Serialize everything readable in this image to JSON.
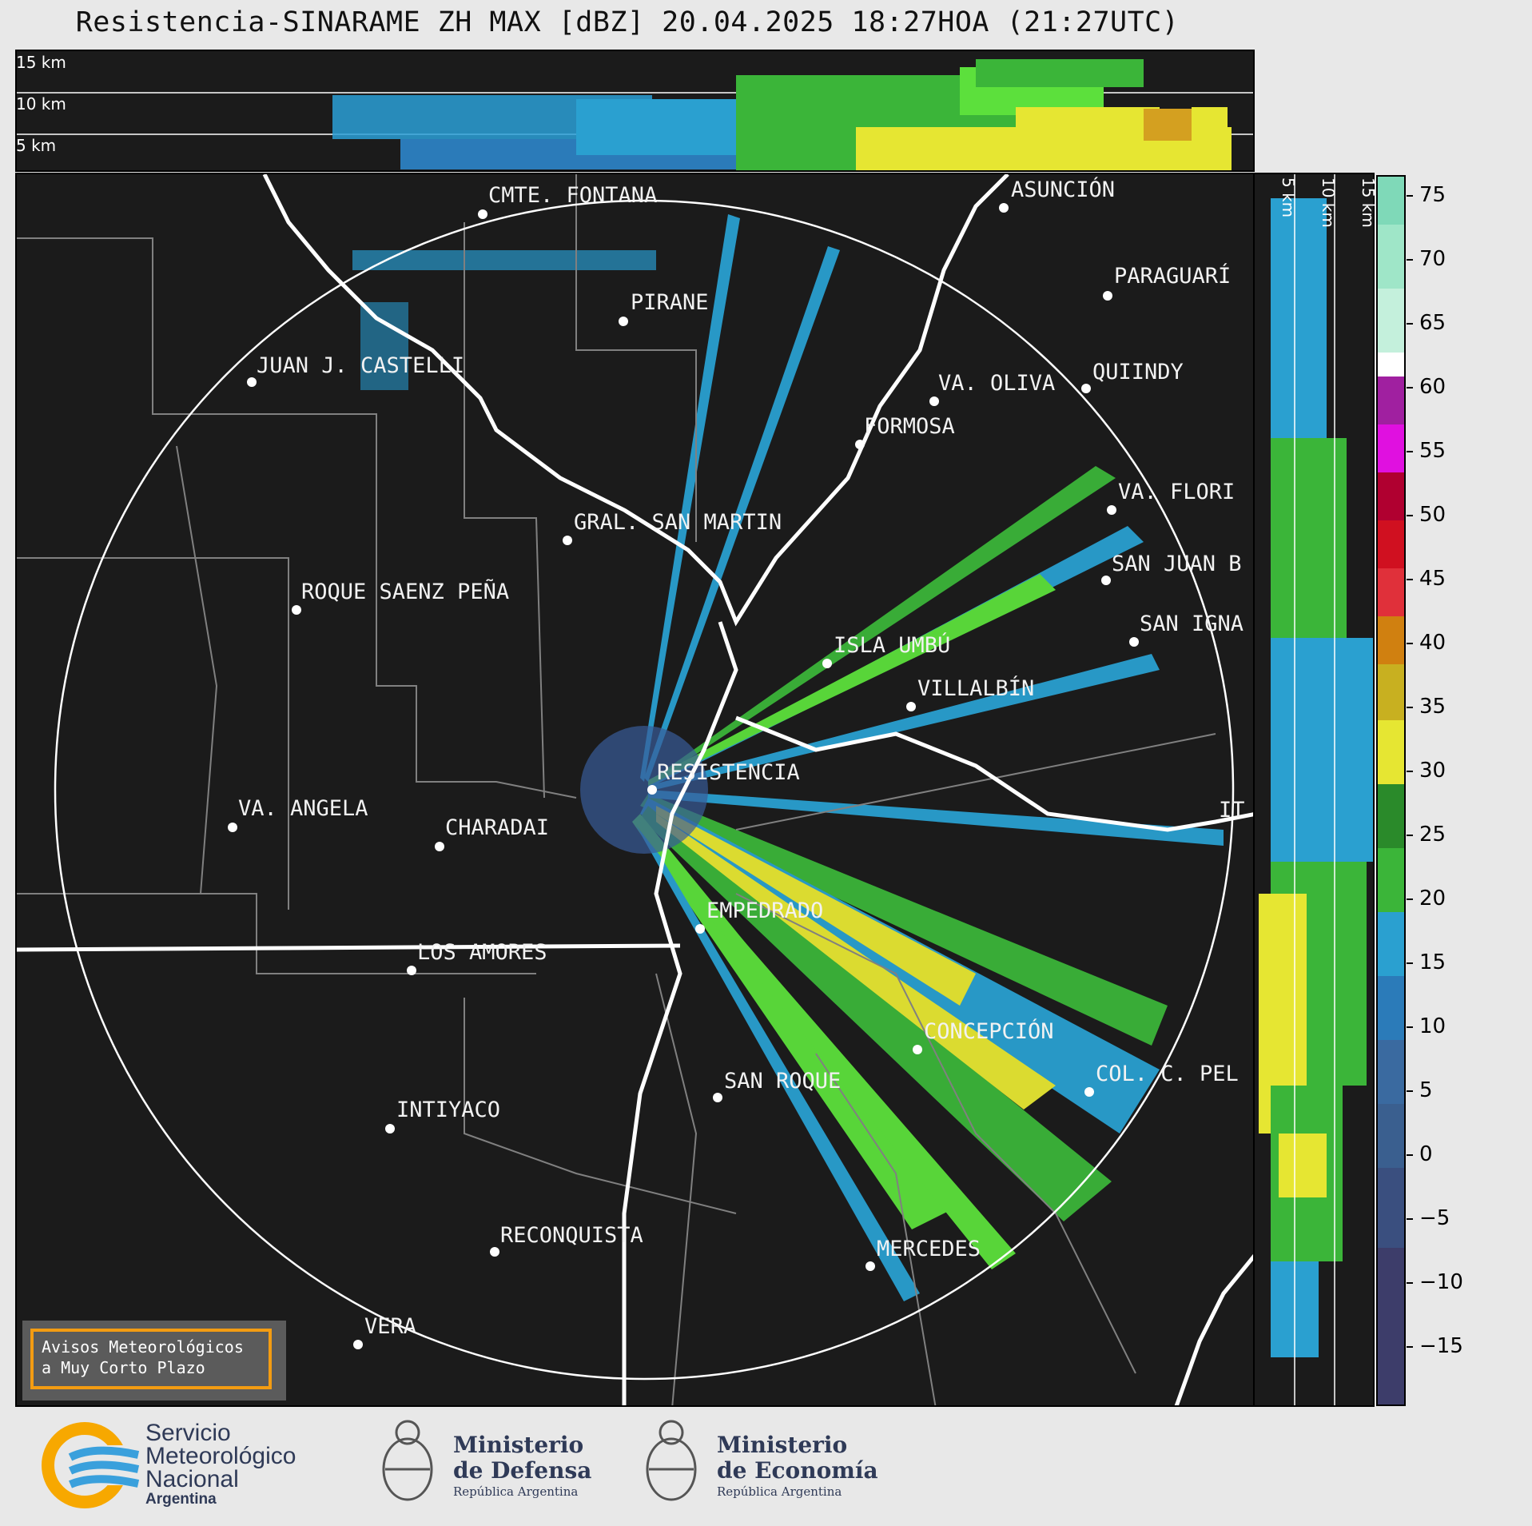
{
  "title": "Resistencia-SINARAME ZH MAX [dBZ] 20.04.2025 18:27HOA (21:27UTC)",
  "top_panel_heights": [
    "15 km",
    "10 km",
    "5 km"
  ],
  "side_panel_heights": [
    "5 km",
    "10 km",
    "15 km"
  ],
  "colorbar": {
    "unit": "dBZ",
    "ticks": [
      "75",
      "70",
      "65",
      "60",
      "55",
      "50",
      "45",
      "40",
      "35",
      "30",
      "25",
      "20",
      "15",
      "10",
      "5",
      "0",
      "−5",
      "−10",
      "−15"
    ]
  },
  "cities": [
    {
      "name": "CMTE. FONTANA"
    },
    {
      "name": "ASUNCIÓN"
    },
    {
      "name": "PARAGUARÍ"
    },
    {
      "name": "PIRANE"
    },
    {
      "name": "JUAN J. CASTELLI"
    },
    {
      "name": "VA. OLIVA"
    },
    {
      "name": "QUIINDY"
    },
    {
      "name": "FORMOSA"
    },
    {
      "name": "VA. FLORI"
    },
    {
      "name": "GRAL. SAN MARTIN"
    },
    {
      "name": "SAN JUAN B"
    },
    {
      "name": "ROQUE SAENZ PEÑA"
    },
    {
      "name": "SAN IGNA"
    },
    {
      "name": "ISLA UMBÚ"
    },
    {
      "name": "VILLALBÍN"
    },
    {
      "name": "RESISTENCIA"
    },
    {
      "name": "IT"
    },
    {
      "name": "VA. ANGELA"
    },
    {
      "name": "CHARADAI"
    },
    {
      "name": "EMPEDRADO"
    },
    {
      "name": "LOS AMORES"
    },
    {
      "name": "CONCEPCIÓN"
    },
    {
      "name": "COL. C. PEL"
    },
    {
      "name": "SAN ROQUE"
    },
    {
      "name": "INTIYACO"
    },
    {
      "name": "RECONQUISTA"
    },
    {
      "name": "MERCEDES"
    },
    {
      "name": "VERA"
    }
  ],
  "warning_box": {
    "line1": "Avisos Meteorológicos",
    "line2": "a Muy Corto Plazo"
  },
  "footer": {
    "smn": {
      "line1": "Servicio",
      "line2": "Meteorológico",
      "line3": "Nacional",
      "line4": "Argentina"
    },
    "defensa": {
      "line1": "Ministerio",
      "line2": "de Defensa",
      "line3": "República Argentina"
    },
    "economia": {
      "line1": "Ministerio",
      "line2": "de Economía",
      "line3": "República Argentina"
    }
  }
}
